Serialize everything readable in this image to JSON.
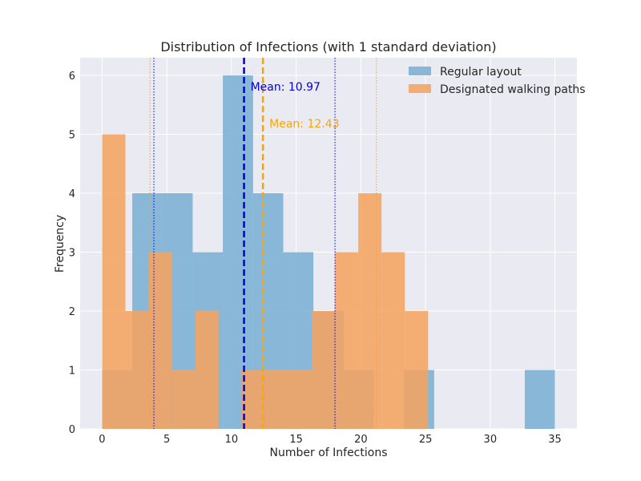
{
  "chart_data": {
    "type": "bar",
    "subtype": "overlapping-histogram",
    "title": "Distribution of Infections (with 1 standard deviation)",
    "xlabel": "Number of Infections",
    "ylabel": "Frequency",
    "xlim": [
      -1.7,
      36.7
    ],
    "ylim": [
      0,
      6.3
    ],
    "xticks": [
      0,
      5,
      10,
      15,
      20,
      25,
      30,
      35
    ],
    "yticks": [
      0,
      1,
      2,
      3,
      4,
      5,
      6
    ],
    "grid": true,
    "legend_position": "top-right",
    "series": [
      {
        "name": "Regular layout",
        "color": "#7bafd4",
        "bins": [
          {
            "x0": 0,
            "x1": 2.33,
            "count": 1
          },
          {
            "x0": 2.33,
            "x1": 4.67,
            "count": 4
          },
          {
            "x0": 4.67,
            "x1": 7.0,
            "count": 4
          },
          {
            "x0": 7.0,
            "x1": 9.33,
            "count": 3
          },
          {
            "x0": 9.33,
            "x1": 11.67,
            "count": 6
          },
          {
            "x0": 11.67,
            "x1": 14.0,
            "count": 4
          },
          {
            "x0": 14.0,
            "x1": 16.33,
            "count": 3
          },
          {
            "x0": 16.33,
            "x1": 18.67,
            "count": 2
          },
          {
            "x0": 18.67,
            "x1": 21.0,
            "count": 1
          },
          {
            "x0": 21.0,
            "x1": 23.33,
            "count": 0
          },
          {
            "x0": 23.33,
            "x1": 25.67,
            "count": 1
          },
          {
            "x0": 25.67,
            "x1": 28.0,
            "count": 0
          },
          {
            "x0": 28.0,
            "x1": 30.33,
            "count": 0
          },
          {
            "x0": 30.33,
            "x1": 32.67,
            "count": 0
          },
          {
            "x0": 32.67,
            "x1": 35.0,
            "count": 1
          }
        ],
        "mean": 10.97,
        "mean_label": "Mean: 10.97",
        "std_bounds": [
          4.0,
          18.0
        ],
        "mean_line_color": "#0000dd"
      },
      {
        "name": "Designated walking paths",
        "color": "#f4a460",
        "bins": [
          {
            "x0": 0,
            "x1": 1.8,
            "count": 5
          },
          {
            "x0": 1.8,
            "x1": 3.6,
            "count": 2
          },
          {
            "x0": 3.6,
            "x1": 5.4,
            "count": 3
          },
          {
            "x0": 5.4,
            "x1": 7.2,
            "count": 1
          },
          {
            "x0": 7.2,
            "x1": 9.0,
            "count": 2
          },
          {
            "x0": 9.0,
            "x1": 10.8,
            "count": 0
          },
          {
            "x0": 10.8,
            "x1": 12.6,
            "count": 1
          },
          {
            "x0": 12.6,
            "x1": 14.4,
            "count": 1
          },
          {
            "x0": 14.4,
            "x1": 16.2,
            "count": 1
          },
          {
            "x0": 16.2,
            "x1": 18.0,
            "count": 2
          },
          {
            "x0": 18.0,
            "x1": 19.8,
            "count": 3
          },
          {
            "x0": 19.8,
            "x1": 21.6,
            "count": 4
          },
          {
            "x0": 21.6,
            "x1": 23.4,
            "count": 3
          },
          {
            "x0": 23.4,
            "x1": 25.2,
            "count": 2
          }
        ],
        "mean": 12.43,
        "mean_label": "Mean: 12.43",
        "std_bounds": [
          3.7,
          21.2
        ],
        "mean_line_color": "#ffa500"
      }
    ]
  }
}
